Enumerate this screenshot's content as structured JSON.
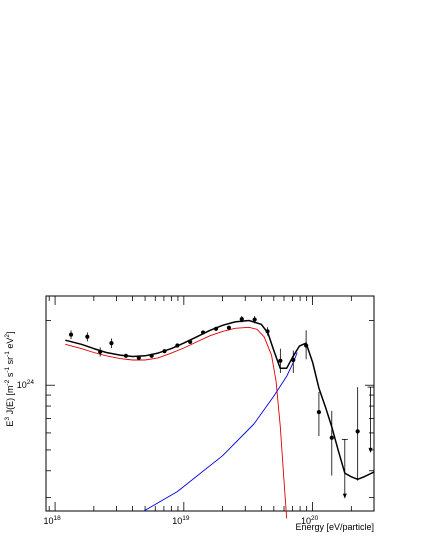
{
  "chart_data": {
    "type": "scatter",
    "xscale": "log",
    "yscale": "log",
    "xlabel": "Energy  [eV/particle]",
    "ylabel_parts": [
      "E",
      "3",
      " J(E)  [m",
      "-2",
      " s",
      "-1",
      " sr",
      "-1",
      " eV",
      "2",
      "]"
    ],
    "xlim": [
      8.5e+17,
      3e+20
    ],
    "ylim": [
      2.6e+23,
      2.6e+24
    ],
    "x_ticks": [
      {
        "value": 1e+18,
        "base": "10",
        "exp": "18"
      },
      {
        "value": 1e+19,
        "base": "10",
        "exp": "19"
      },
      {
        "value": 1e+20,
        "base": "10",
        "exp": "20"
      }
    ],
    "y_ticks": [
      {
        "value": 1e+24,
        "base": "10",
        "exp": "24"
      }
    ],
    "grid": false,
    "legend": "none",
    "points": [
      {
        "x": 1.33e+18,
        "y": 1.72e+24,
        "err": [
          1.64e+24,
          1.8e+24
        ]
      },
      {
        "x": 1.78e+18,
        "y": 1.68e+24,
        "err": [
          1.6e+24,
          1.76e+24
        ]
      },
      {
        "x": 2.24e+18,
        "y": 1.43e+24,
        "err": [
          1.36e+24,
          1.5e+24
        ]
      },
      {
        "x": 2.74e+18,
        "y": 1.57e+24,
        "err": [
          1.49e+24,
          1.65e+24
        ]
      },
      {
        "x": 3.55e+18,
        "y": 1.37e+24
      },
      {
        "x": 4.47e+18,
        "y": 1.34e+24
      },
      {
        "x": 5.62e+18,
        "y": 1.37e+24
      },
      {
        "x": 7.08e+18,
        "y": 1.44e+24
      },
      {
        "x": 8.91e+18,
        "y": 1.53e+24
      },
      {
        "x": 1.12e+19,
        "y": 1.59e+24
      },
      {
        "x": 1.41e+19,
        "y": 1.76e+24
      },
      {
        "x": 1.78e+19,
        "y": 1.83e+24
      },
      {
        "x": 2.24e+19,
        "y": 1.85e+24
      },
      {
        "x": 2.82e+19,
        "y": 2.03e+24,
        "err": [
          1.96e+24,
          2.1e+24
        ]
      },
      {
        "x": 3.55e+19,
        "y": 2.02e+24,
        "err": [
          1.94e+24,
          2.1e+24
        ]
      },
      {
        "x": 4.47e+19,
        "y": 1.78e+24,
        "err": [
          1.7e+24,
          1.86e+24
        ]
      },
      {
        "x": 5.62e+19,
        "y": 1.3e+24,
        "err": [
          1.14e+24,
          1.48e+24
        ]
      },
      {
        "x": 7.08e+19,
        "y": 1.31e+24,
        "err": [
          1.14e+24,
          1.45e+24
        ]
      },
      {
        "x": 8.91e+19,
        "y": 1.53e+24,
        "err": [
          1.32e+24,
          1.8e+24
        ]
      },
      {
        "x": 1.12e+20,
        "y": 7.5e+23,
        "err": [
          5.8e+23,
          9.3e+23
        ]
      },
      {
        "x": 1.41e+20,
        "y": 5.7e+23,
        "err": [
          3.8e+23,
          7.6e+23
        ]
      },
      {
        "x": 1.78e+20,
        "upper_limit": 5.6e+23,
        "arrow_to": 3e+23
      },
      {
        "x": 2.24e+20,
        "y": 6.1e+23,
        "err": [
          3.6e+23,
          9.8e+23
        ]
      },
      {
        "x": 2.82e+20,
        "upper_limit": 9.8e+23,
        "arrow_to": 4.9e+23
      }
    ],
    "series": [
      {
        "color": "#000000",
        "width": 1.5,
        "x": [
          1.2e+18,
          1.6e+18,
          2e+18,
          2.5e+18,
          3.2e+18,
          4e+18,
          5e+18,
          6.3e+18,
          8e+18,
          1e+19,
          1.26e+19,
          1.6e+19,
          2e+19,
          2.5e+19,
          3.2e+19,
          4e+19,
          4.5e+19,
          5e+19,
          5.6e+19,
          6.3e+19,
          7e+19,
          7.9e+19,
          8.9e+19,
          1e+20,
          1.12e+20,
          1.26e+20,
          1.41e+20,
          1.58e+20,
          1.78e+20,
          2e+20,
          2.24e+20,
          2.51e+20,
          3e+20
        ],
        "y": [
          1.62e+24,
          1.55e+24,
          1.48e+24,
          1.42e+24,
          1.38e+24,
          1.36e+24,
          1.37e+24,
          1.41e+24,
          1.48e+24,
          1.57e+24,
          1.68e+24,
          1.8e+24,
          1.9e+24,
          1.97e+24,
          2e+24,
          1.92e+24,
          1.75e+24,
          1.45e+24,
          1.2e+24,
          1.2e+24,
          1.35e+24,
          1.52e+24,
          1.57e+24,
          1.28e+24,
          9.7e+23,
          7.9e+23,
          6.4e+23,
          5e+23,
          3.9e+23,
          3.75e+23,
          3.65e+23,
          3.75e+23,
          3.95e+23
        ]
      },
      {
        "color": "#e00000",
        "width": 0.9,
        "x": [
          1.2e+18,
          1.6e+18,
          2e+18,
          2.5e+18,
          3.2e+18,
          4e+18,
          5e+18,
          6.3e+18,
          8e+18,
          1e+19,
          1.26e+19,
          1.6e+19,
          2e+19,
          2.5e+19,
          3.2e+19,
          3.7e+19,
          4.2e+19,
          4.8e+19,
          5.2e+19,
          5.6e+19,
          6e+19,
          6.15e+19,
          6.3e+19
        ],
        "y": [
          1.55e+24,
          1.48e+24,
          1.42e+24,
          1.37e+24,
          1.33e+24,
          1.31e+24,
          1.31e+24,
          1.34e+24,
          1.41e+24,
          1.49e+24,
          1.59e+24,
          1.7e+24,
          1.78e+24,
          1.84e+24,
          1.86e+24,
          1.82e+24,
          1.68e+24,
          1.38e+24,
          1.05e+24,
          6.5e+23,
          3.6e+23,
          2.9e+23,
          2.4e+23
        ]
      },
      {
        "color": "#0000dd",
        "width": 0.9,
        "x": [
          4.9e+18,
          8.9e+18,
          2e+19,
          3.5e+19,
          5e+19,
          6.3e+19,
          7.1e+19,
          7.6e+19
        ],
        "y": [
          2.6e+23,
          3.2e+23,
          4.7e+23,
          6.6e+23,
          8.9e+23,
          1.1e+24,
          1.28e+24,
          1.42e+24
        ]
      }
    ]
  }
}
